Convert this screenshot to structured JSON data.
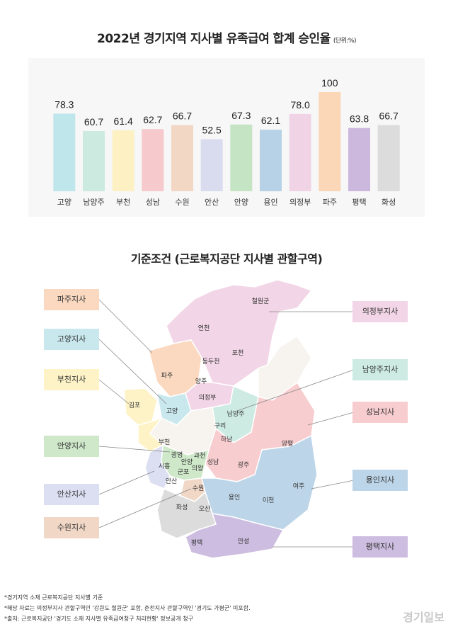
{
  "title": "2022년 경기지역 지사별 유족급여 합계 승인율",
  "unit": "(단위:%)",
  "chart_data": {
    "type": "bar",
    "title": "2022년 경기지역 지사별 유족급여 합계 승인율",
    "unit": "(단위:%)",
    "categories": [
      "고양",
      "남양주",
      "부천",
      "성남",
      "수원",
      "안산",
      "안양",
      "용인",
      "의정부",
      "파주",
      "평택",
      "화성"
    ],
    "values": [
      78.3,
      60.7,
      61.4,
      62.7,
      66.7,
      52.5,
      67.3,
      62.1,
      78.0,
      100,
      63.8,
      66.7
    ],
    "value_labels": [
      "78.3",
      "60.7",
      "61.4",
      "62.7",
      "66.7",
      "52.5",
      "67.3",
      "62.1",
      "78.0",
      "100",
      "63.8",
      "66.7"
    ],
    "colors": [
      "#bfe6ea",
      "#cdeae0",
      "#fdf1c4",
      "#f6c9cd",
      "#f2d7c5",
      "#d9dcef",
      "#c5e4c3",
      "#b7d2e6",
      "#f0d4e6",
      "#fbd7b8",
      "#cdb8dd",
      "#dcdcdc"
    ],
    "ylim": [
      0,
      100
    ],
    "grid": false,
    "legend": "none"
  },
  "map": {
    "title": "기준조건 (근로복지공단 지사별 관할구역)",
    "offices_left": [
      "파주지사",
      "고양지사",
      "부천지사",
      "안양지사",
      "안산지사",
      "수원지사"
    ],
    "offices_right": [
      "의정부지사",
      "남양주지사",
      "성남지사",
      "용인지사",
      "평택지사"
    ],
    "offices_left_colors": [
      "#fad9c0",
      "#c8e8ee",
      "#fdf3c6",
      "#cfe8ca",
      "#dcdff2",
      "#f1d7c6"
    ],
    "offices_right_colors": [
      "#f2d5e6",
      "#cdebe3",
      "#f8cdd0",
      "#bcd5e8",
      "#cdbde0"
    ],
    "regions": [
      "철원군",
      "연천",
      "포천",
      "동두천",
      "파주",
      "양주",
      "의정부",
      "김포",
      "고양",
      "남양주",
      "구리",
      "부천",
      "하남",
      "양평",
      "광명",
      "과천",
      "안양",
      "의왕",
      "군포",
      "시흥",
      "성남",
      "광주",
      "안산",
      "수원",
      "여주",
      "용인",
      "이천",
      "화성",
      "오산",
      "평택",
      "안성"
    ]
  },
  "notes": [
    "*경기지역 소재 근로복지공단 지사별 기준",
    "*해당 자료는 의정부지사 관할구역인 '강원도 철원군' 포함, 춘천지사 관할구역인 '경기도 가평군' 미포함.",
    "*출처: 근로복지공단 '경기도 소재 지사별 유족급여청구 처리현황' 정보공개 청구"
  ],
  "logo": "경기일보"
}
